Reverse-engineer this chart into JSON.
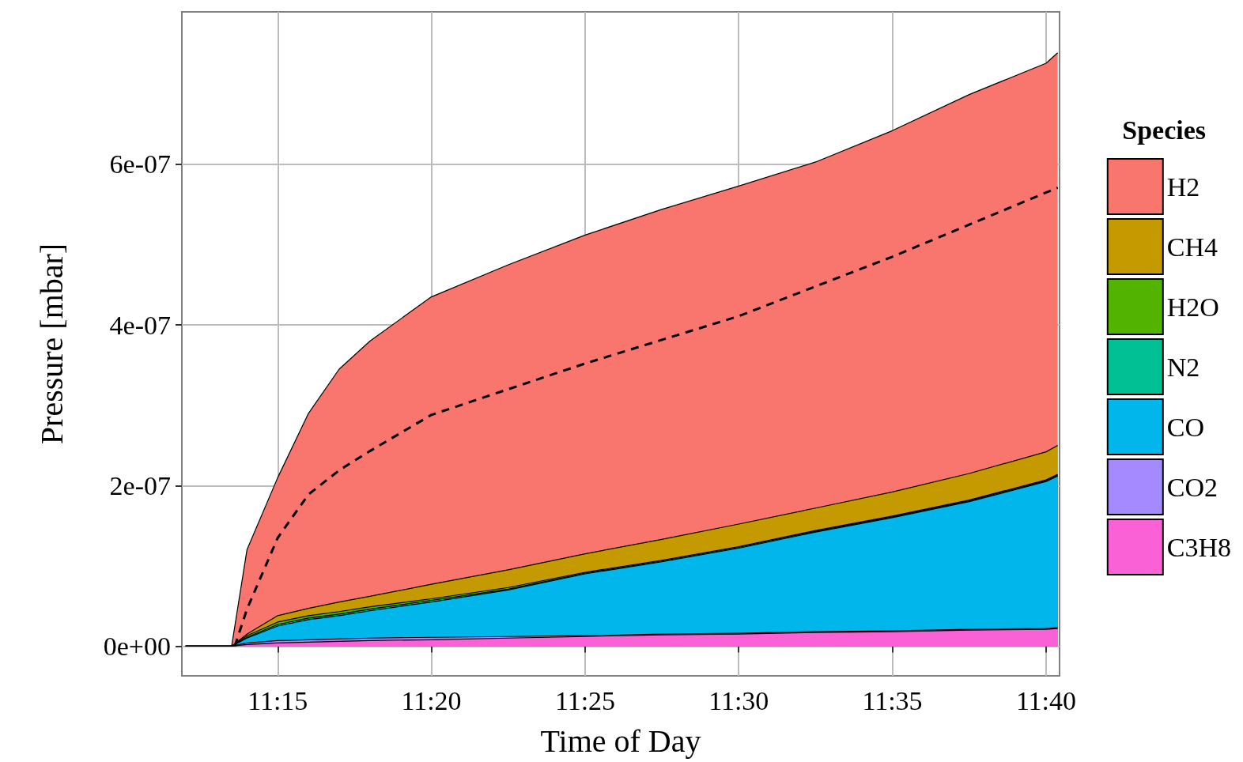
{
  "chart_data": {
    "type": "area",
    "stacked": true,
    "xlabel": "Time of Day",
    "ylabel": "Pressure [mbar]",
    "legend_title": "Species",
    "legend": "right",
    "grid": true,
    "x": [
      11.2,
      11.225,
      11.2333,
      11.25,
      11.2667,
      11.2833,
      11.3,
      11.3333,
      11.375,
      11.4167,
      11.4583,
      11.5,
      11.5417,
      11.5833,
      11.625,
      11.6667,
      11.673
    ],
    "xlim": [
      11.198,
      11.674
    ],
    "xticks": [
      {
        "value": 11.25,
        "label": "11:15"
      },
      {
        "value": 11.3333,
        "label": "11:20"
      },
      {
        "value": 11.4167,
        "label": "11:25"
      },
      {
        "value": 11.5,
        "label": "11:30"
      },
      {
        "value": 11.5833,
        "label": "11:35"
      },
      {
        "value": 11.6667,
        "label": "11:40"
      }
    ],
    "ylim": [
      -3.7e-08,
      7.9e-07
    ],
    "yticks": [
      {
        "value": 0,
        "label": "0e+00"
      },
      {
        "value": 2e-07,
        "label": "2e-07"
      },
      {
        "value": 4e-07,
        "label": "4e-07"
      },
      {
        "value": 6e-07,
        "label": "6e-07"
      }
    ],
    "series": [
      {
        "name": "C3H8",
        "color": "#fb61d7",
        "values": [
          0,
          0,
          2e-09,
          4e-09,
          5e-09,
          6e-09,
          7e-09,
          8e-09,
          1e-08,
          1.2e-08,
          1.4e-08,
          1.5e-08,
          1.7e-08,
          1.8e-08,
          2e-08,
          2.1e-08,
          2.2e-08
        ]
      },
      {
        "name": "CO2",
        "color": "#a58aff",
        "values": [
          0,
          0,
          2e-09,
          3e-09,
          3e-09,
          3e-09,
          3e-09,
          3e-09,
          2e-09,
          1e-09,
          1e-09,
          1e-09,
          1e-09,
          1e-09,
          1e-09,
          1e-09,
          1e-09
        ]
      },
      {
        "name": "CO",
        "color": "#00b6eb",
        "values": [
          0,
          0,
          6e-09,
          1.8e-08,
          2.5e-08,
          2.9e-08,
          3.4e-08,
          4.4e-08,
          5.8e-08,
          7.7e-08,
          9e-08,
          1.06e-07,
          1.24e-07,
          1.41e-07,
          1.59e-07,
          1.83e-07,
          1.89e-07
        ]
      },
      {
        "name": "N2",
        "color": "#00c094",
        "values": [
          0,
          0,
          1e-09,
          2e-09,
          2e-09,
          2e-09,
          2e-09,
          2e-09,
          1e-09,
          1e-09,
          1e-09,
          1e-09,
          1e-09,
          1e-09,
          1e-09,
          1e-09,
          1e-09
        ]
      },
      {
        "name": "H2O",
        "color": "#53b400",
        "values": [
          0,
          0,
          2e-09,
          3e-09,
          3e-09,
          3e-09,
          3e-09,
          2e-09,
          2e-09,
          1e-09,
          1e-09,
          1e-09,
          1e-09,
          1e-09,
          1e-09,
          1e-09,
          1e-09
        ]
      },
      {
        "name": "CH4",
        "color": "#c49a00",
        "values": [
          0,
          0,
          2e-09,
          8e-09,
          9e-09,
          1.2e-08,
          1.3e-08,
          1.8e-08,
          2.2e-08,
          2.3e-08,
          2.6e-08,
          2.8e-08,
          2.8e-08,
          3e-08,
          3.3e-08,
          3.5e-08,
          3.6e-08
        ]
      },
      {
        "name": "H2",
        "color": "#f8766d",
        "values": [
          0,
          0,
          1.05e-07,
          1.72e-07,
          2.43e-07,
          2.9e-07,
          3.18e-07,
          3.58e-07,
          3.8e-07,
          3.97e-07,
          4.11e-07,
          4.21e-07,
          4.31e-07,
          4.5e-07,
          4.72e-07,
          4.84e-07,
          4.89e-07
        ]
      },
      {
        "type": "line",
        "color": "#000000",
        "line_style": "dashed",
        "x": [
          11.2267,
          11.2333,
          11.25,
          11.2667,
          11.2833,
          11.3,
          11.3333,
          11.4167,
          11.5,
          11.5833,
          11.673
        ],
        "values": [
          0,
          4.6e-08,
          1.35e-07,
          1.89e-07,
          2.19e-07,
          2.43e-07,
          2.88e-07,
          3.52e-07,
          4.11e-07,
          4.85e-07,
          5.71e-07
        ]
      }
    ]
  }
}
